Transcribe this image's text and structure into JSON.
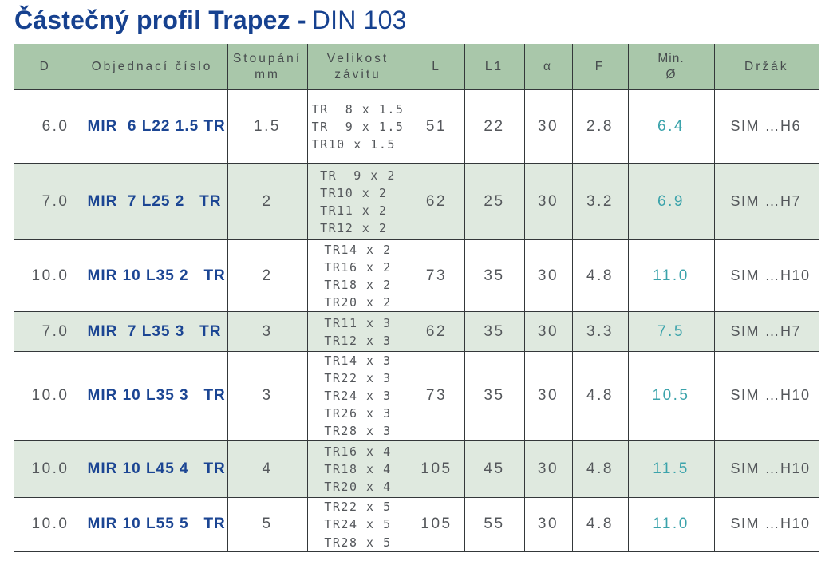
{
  "title": {
    "bold": "Částečný profil Trapez -",
    "regular": "DIN 103"
  },
  "table": {
    "columns": [
      {
        "key": "d",
        "lines": [
          "D"
        ]
      },
      {
        "key": "order",
        "lines": [
          "Objednací číslo"
        ]
      },
      {
        "key": "pitch",
        "lines": [
          "Stoupání",
          "mm"
        ]
      },
      {
        "key": "threads",
        "lines": [
          "Velikost",
          "závitu"
        ]
      },
      {
        "key": "l",
        "lines": [
          "L"
        ]
      },
      {
        "key": "l1",
        "lines": [
          "L1"
        ]
      },
      {
        "key": "alpha",
        "lines": [
          "α"
        ]
      },
      {
        "key": "f",
        "lines": [
          "F"
        ]
      },
      {
        "key": "min_d",
        "lines": [
          "Min.",
          "Ø"
        ]
      },
      {
        "key": "holder",
        "lines": [
          "Držák"
        ]
      }
    ],
    "rows": [
      {
        "d": "6.0",
        "order": "MIR  6 L22 1.5 TR",
        "pitch": "1.5",
        "threads": [
          "TR  8 x 1.5",
          "TR  9 x 1.5",
          "TR10 x 1.5"
        ],
        "l": "51",
        "l1": "22",
        "alpha": "30",
        "f": "2.8",
        "min_d": "6.4",
        "holder": "SIM …H6"
      },
      {
        "d": "7.0",
        "order": "MIR  7 L25 2   TR",
        "pitch": "2",
        "threads": [
          "TR  9 x 2",
          "TR10 x 2",
          "TR11 x 2",
          "TR12 x 2"
        ],
        "l": "62",
        "l1": "25",
        "alpha": "30",
        "f": "3.2",
        "min_d": "6.9",
        "holder": "SIM …H7"
      },
      {
        "d": "10.0",
        "order": "MIR 10 L35 2   TR",
        "pitch": "2",
        "threads": [
          "TR14 x 2",
          "TR16 x 2",
          "TR18 x 2",
          "TR20 x 2"
        ],
        "l": "73",
        "l1": "35",
        "alpha": "30",
        "f": "4.8",
        "min_d": "11.0",
        "holder": "SIM …H10"
      },
      {
        "d": "7.0",
        "order": "MIR  7 L35 3   TR",
        "pitch": "3",
        "threads": [
          "TR11 x 3",
          "TR12 x 3"
        ],
        "l": "62",
        "l1": "35",
        "alpha": "30",
        "f": "3.3",
        "min_d": "7.5",
        "holder": "SIM …H7"
      },
      {
        "d": "10.0",
        "order": "MIR 10 L35 3   TR",
        "pitch": "3",
        "threads": [
          "TR14 x 3",
          "TR22 x 3",
          "TR24 x 3",
          "TR26 x 3",
          "TR28 x 3"
        ],
        "l": "73",
        "l1": "35",
        "alpha": "30",
        "f": "4.8",
        "min_d": "10.5",
        "holder": "SIM …H10"
      },
      {
        "d": "10.0",
        "order": "MIR 10 L45 4   TR",
        "pitch": "4",
        "threads": [
          "TR16 x 4",
          "TR18 x 4",
          "TR20 x 4"
        ],
        "l": "105",
        "l1": "45",
        "alpha": "30",
        "f": "4.8",
        "min_d": "11.5",
        "holder": "SIM …H10"
      },
      {
        "d": "10.0",
        "order": "MIR 10 L55 5   TR",
        "pitch": "5",
        "threads": [
          "TR22 x 5",
          "TR24 x 5",
          "TR28 x 5"
        ],
        "l": "105",
        "l1": "55",
        "alpha": "30",
        "f": "4.8",
        "min_d": "11.0",
        "holder": "SIM …H10"
      }
    ]
  },
  "colors": {
    "title_navy": "#16418f",
    "order_number_navy": "#1b4593",
    "header_green": "#a9c7aa",
    "alt_row_green": "#dfe9df",
    "min_diameter_teal": "#3ba3ab",
    "border_dark": "#34383a",
    "cell_text_gray": "#54575b"
  }
}
